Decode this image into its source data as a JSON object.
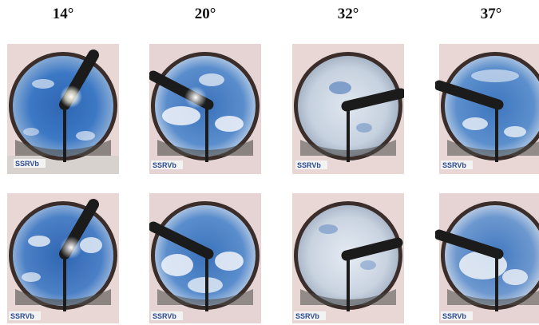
{
  "headers": [
    "14°",
    "20°",
    "32°",
    "37°"
  ],
  "panels": [
    {
      "row": 1,
      "col": 1,
      "sky": "clear-blue",
      "logo_text": "SSRVb"
    },
    {
      "row": 1,
      "col": 2,
      "sky": "blue-with-clouds",
      "logo_text": "SSRVb"
    },
    {
      "row": 1,
      "col": 3,
      "sky": "overcast-white",
      "logo_text": "SSRVb"
    },
    {
      "row": 1,
      "col": 4,
      "sky": "blue-with-altocumulus",
      "logo_text": "SSRVb"
    },
    {
      "row": 2,
      "col": 1,
      "sky": "blue-with-clouds",
      "logo_text": "SSRVb"
    },
    {
      "row": 2,
      "col": 2,
      "sky": "blue-with-clouds",
      "logo_text": "SSRVb"
    },
    {
      "row": 2,
      "col": 3,
      "sky": "overcast-white",
      "logo_text": "SSRVb"
    },
    {
      "row": 2,
      "col": 4,
      "sky": "blue-with-clouds",
      "logo_text": "SSRVb"
    }
  ],
  "colors": {
    "sky_deep": "#1f4d8f",
    "sky_mid": "#3d74b8",
    "sky_light": "#8db4de",
    "cloud": "#eef2f7",
    "dome_rim": "#5a4a44",
    "background_pink": "#e6c8cc",
    "shade_band": "#1b1b1b"
  }
}
